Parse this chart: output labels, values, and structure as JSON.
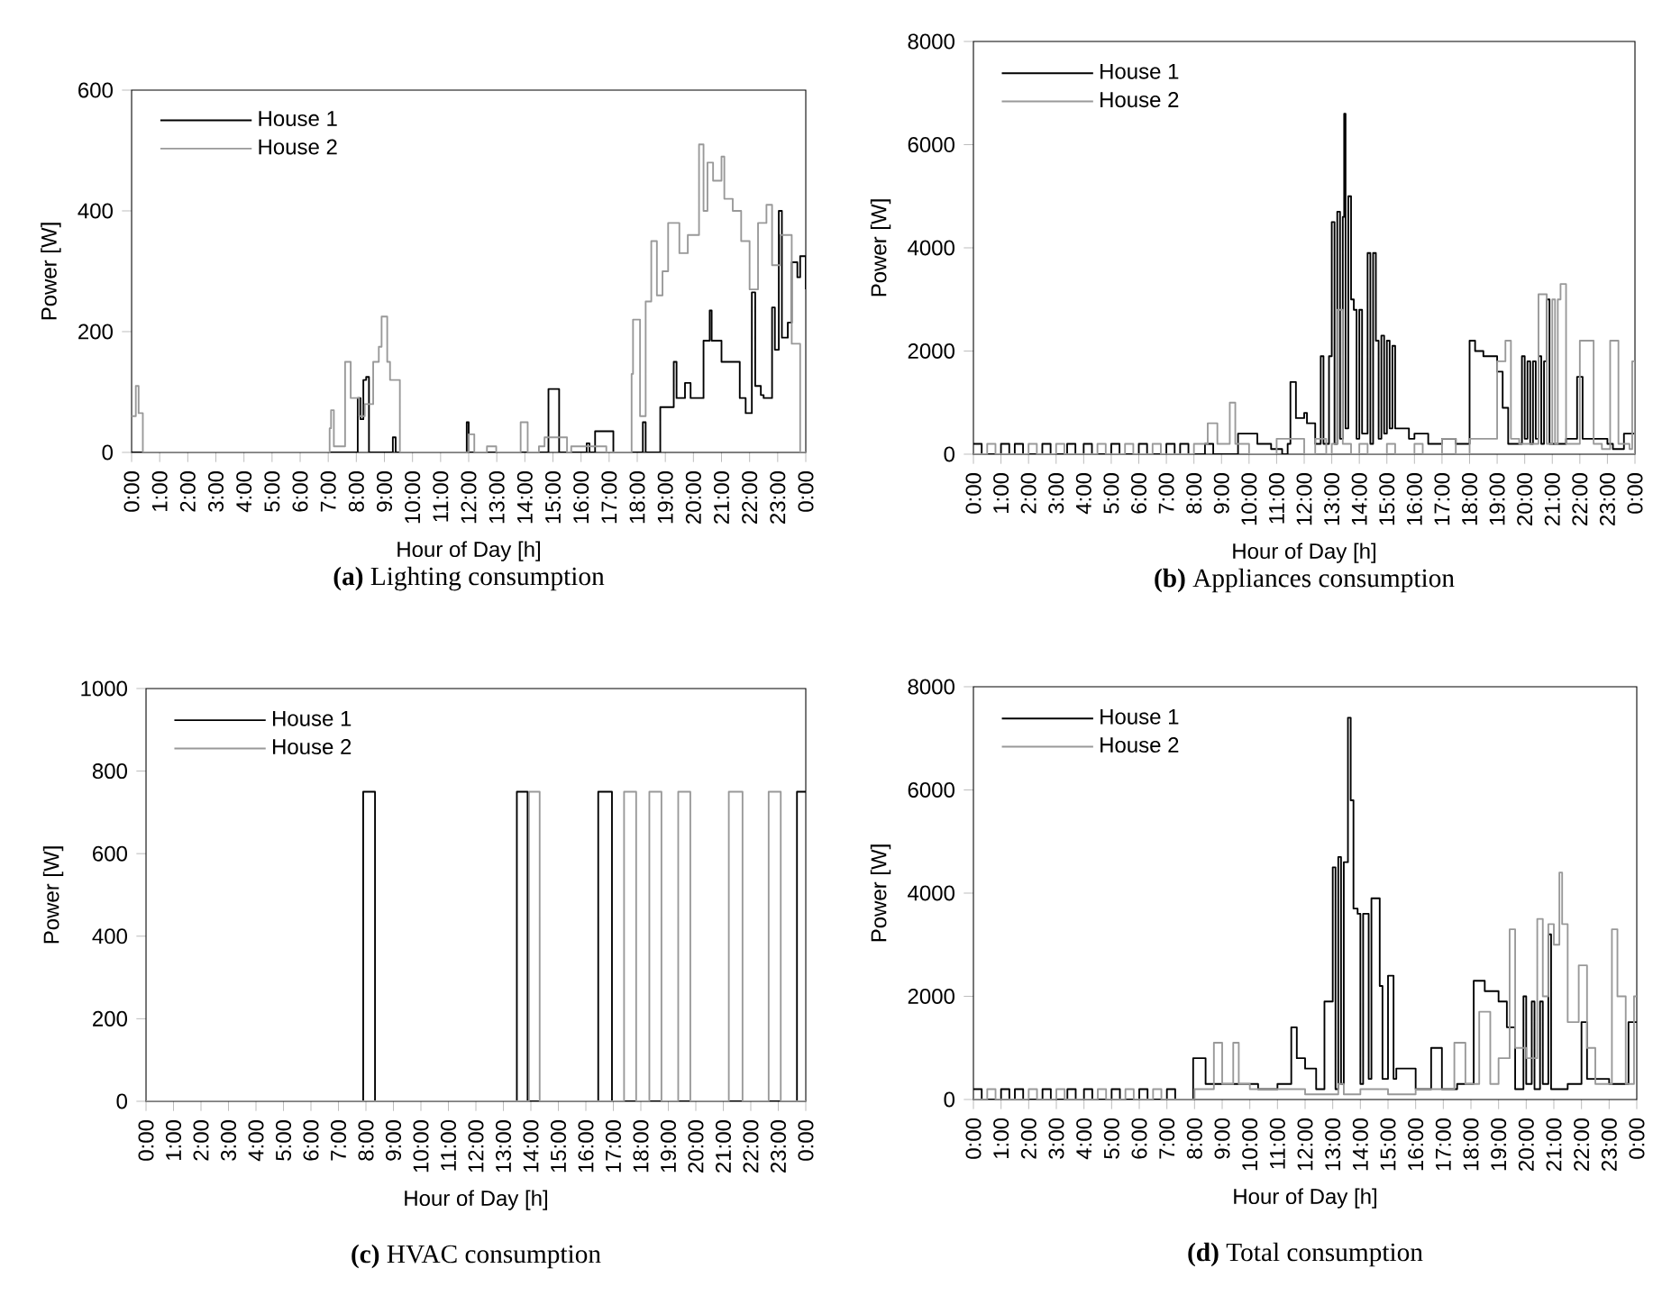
{
  "chart_data": [
    {
      "type": "step",
      "title": "**(a)** Lighting consumption",
      "xlabel": "Hour of Day [h]",
      "ylabel": "Power [W]",
      "xlim": [
        0,
        24
      ],
      "ylim": [
        0,
        600
      ],
      "yticks": [
        0,
        200,
        400,
        600
      ],
      "legend": "top left",
      "xticks": [
        {
          "value": 0,
          "label": "0:00"
        },
        {
          "value": 1,
          "label": "1:00"
        },
        {
          "value": 2,
          "label": "2:00"
        },
        {
          "value": 3,
          "label": "3:00"
        },
        {
          "value": 4,
          "label": "4:00"
        },
        {
          "value": 5,
          "label": "5:00"
        },
        {
          "value": 6,
          "label": "6:00"
        },
        {
          "value": 7,
          "label": "7:00"
        },
        {
          "value": 8,
          "label": "8:00"
        },
        {
          "value": 9,
          "label": "9:00"
        },
        {
          "value": 10,
          "label": "10:00"
        },
        {
          "value": 11,
          "label": "11:00"
        },
        {
          "value": 12,
          "label": "12:00"
        },
        {
          "value": 13,
          "label": "13:00"
        },
        {
          "value": 14,
          "label": "14:00"
        },
        {
          "value": 15,
          "label": "15:00"
        },
        {
          "value": 16,
          "label": "16:00"
        },
        {
          "value": 17,
          "label": "17:00"
        },
        {
          "value": 18,
          "label": "18:00"
        },
        {
          "value": 19,
          "label": "19:00"
        },
        {
          "value": 20,
          "label": "20:00"
        },
        {
          "value": 21,
          "label": "21:00"
        },
        {
          "value": 22,
          "label": "22:00"
        },
        {
          "value": 23,
          "label": "23:00"
        },
        {
          "value": 24,
          "label": "0:00"
        }
      ],
      "series": [
        {
          "name": "House 1",
          "color": "#000000",
          "x": [
            0,
            8.05,
            8.15,
            8.25,
            8.35,
            8.45,
            8.55,
            9.3,
            9.4,
            11.93,
            12.0,
            14.84,
            15.22,
            16.2,
            16.3,
            16.5,
            17.15,
            18.2,
            18.3,
            18.82,
            19.3,
            19.4,
            19.7,
            19.9,
            20.36,
            20.58,
            20.65,
            21.0,
            21.65,
            21.86,
            22.08,
            22.2,
            22.4,
            22.5,
            22.8,
            22.9,
            23.04,
            23.15,
            23.36,
            23.5,
            23.7,
            23.8,
            24
          ],
          "values": [
            0,
            90,
            55,
            120,
            125,
            0,
            0,
            25,
            0,
            50,
            0,
            105,
            0,
            15,
            0,
            35,
            0,
            50,
            0,
            75,
            150,
            90,
            115,
            90,
            185,
            235,
            185,
            150,
            90,
            65,
            265,
            110,
            95,
            90,
            240,
            170,
            400,
            190,
            215,
            315,
            290,
            325,
            270
          ]
        },
        {
          "name": "House 2",
          "color": "#999999",
          "x": [
            0,
            0.08,
            0.15,
            0.25,
            0.4,
            7.05,
            7.1,
            7.2,
            7.6,
            7.8,
            8.1,
            8.3,
            8.6,
            8.8,
            8.9,
            9.1,
            9.2,
            9.55,
            12.0,
            12.2,
            12.65,
            12.98,
            13.85,
            14.1,
            14.5,
            14.7,
            15.5,
            15.65,
            16.9,
            17.8,
            17.85,
            18.1,
            18.3,
            18.5,
            18.7,
            18.9,
            19.1,
            19.5,
            19.8,
            20.2,
            20.36,
            20.5,
            20.7,
            21.0,
            21.1,
            21.4,
            21.7,
            22.0,
            22.3,
            22.6,
            22.8,
            23.1,
            23.5,
            23.8,
            23.9,
            24
          ],
          "values": [
            60,
            60,
            110,
            65,
            0,
            40,
            70,
            10,
            150,
            90,
            60,
            80,
            150,
            175,
            225,
            150,
            120,
            0,
            30,
            0,
            10,
            0,
            50,
            0,
            10,
            25,
            0,
            10,
            0,
            130,
            220,
            60,
            250,
            350,
            260,
            300,
            380,
            330,
            360,
            510,
            400,
            480,
            450,
            490,
            420,
            400,
            350,
            270,
            380,
            410,
            310,
            360,
            180,
            0,
            0,
            0
          ]
        }
      ]
    },
    {
      "type": "step",
      "title": "**(b)** Appliances consumption",
      "xlabel": "Hour of Day [h]",
      "ylabel": "Power [W]",
      "xlim": [
        0,
        24
      ],
      "ylim": [
        0,
        8000
      ],
      "yticks": [
        0,
        2000,
        4000,
        6000,
        8000
      ],
      "legend": "top left",
      "xticks": [
        {
          "value": 0,
          "label": "0:00"
        },
        {
          "value": 1,
          "label": "1:00"
        },
        {
          "value": 2,
          "label": "2:00"
        },
        {
          "value": 3,
          "label": "3:00"
        },
        {
          "value": 4,
          "label": "4:00"
        },
        {
          "value": 5,
          "label": "5:00"
        },
        {
          "value": 6,
          "label": "6:00"
        },
        {
          "value": 7,
          "label": "7:00"
        },
        {
          "value": 8,
          "label": "8:00"
        },
        {
          "value": 9,
          "label": "9:00"
        },
        {
          "value": 10,
          "label": "10:00"
        },
        {
          "value": 11,
          "label": "11:00"
        },
        {
          "value": 12,
          "label": "12:00"
        },
        {
          "value": 13,
          "label": "13:00"
        },
        {
          "value": 14,
          "label": "14:00"
        },
        {
          "value": 15,
          "label": "15:00"
        },
        {
          "value": 16,
          "label": "16:00"
        },
        {
          "value": 17,
          "label": "17:00"
        },
        {
          "value": 18,
          "label": "18:00"
        },
        {
          "value": 19,
          "label": "19:00"
        },
        {
          "value": 20,
          "label": "20:00"
        },
        {
          "value": 21,
          "label": "21:00"
        },
        {
          "value": 22,
          "label": "22:00"
        },
        {
          "value": 23,
          "label": "23:00"
        },
        {
          "value": 24,
          "label": "0:00"
        }
      ],
      "series": [
        {
          "name": "House 1",
          "color": "#000000",
          "x": [
            0,
            0.3,
            1.0,
            1.3,
            1.5,
            1.8,
            2.5,
            2.8,
            3.4,
            3.7,
            4.0,
            4.3,
            5.0,
            5.3,
            6.0,
            6.3,
            7.0,
            7.3,
            7.5,
            7.8,
            8.4,
            8.7,
            9.6,
            10.3,
            10.8,
            11.2,
            11.4,
            11.5,
            11.7,
            12.0,
            12.1,
            12.4,
            12.6,
            12.7,
            12.9,
            13.0,
            13.1,
            13.2,
            13.3,
            13.4,
            13.45,
            13.5,
            13.6,
            13.7,
            13.8,
            13.9,
            14.0,
            14.1,
            14.3,
            14.4,
            14.5,
            14.6,
            14.7,
            14.8,
            14.9,
            15.0,
            15.1,
            15.2,
            15.3,
            15.8,
            16.0,
            16.5,
            17.0,
            17.5,
            18.0,
            18.2,
            18.5,
            19.0,
            19.2,
            19.4,
            19.6,
            19.9,
            20.0,
            20.1,
            20.2,
            20.3,
            20.4,
            20.5,
            20.6,
            20.7,
            20.8,
            20.9,
            21.5,
            21.9,
            22.1,
            22.5,
            23.0,
            23.2,
            23.6,
            24
          ],
          "values": [
            200,
            0,
            200,
            0,
            200,
            0,
            200,
            0,
            200,
            0,
            200,
            0,
            200,
            0,
            200,
            0,
            200,
            0,
            200,
            0,
            200,
            0,
            400,
            200,
            100,
            0,
            200,
            1400,
            700,
            800,
            600,
            200,
            1900,
            200,
            1900,
            4500,
            200,
            4700,
            300,
            4600,
            6600,
            500,
            5000,
            3000,
            2800,
            300,
            2800,
            400,
            3900,
            200,
            3900,
            2200,
            300,
            2300,
            400,
            2200,
            500,
            2100,
            500,
            300,
            400,
            200,
            300,
            200,
            2200,
            2000,
            1900,
            1600,
            900,
            200,
            200,
            1900,
            300,
            1800,
            200,
            1800,
            300,
            1900,
            200,
            1800,
            3000,
            200,
            300,
            1500,
            300,
            300,
            200,
            100,
            400,
            400
          ]
        },
        {
          "name": "House 2",
          "color": "#999999",
          "x": [
            0,
            0.5,
            0.8,
            2.0,
            2.3,
            3.0,
            3.3,
            4.5,
            4.8,
            5.5,
            5.8,
            6.5,
            6.8,
            8.0,
            8.5,
            8.85,
            9.3,
            9.5,
            10.0,
            11.0,
            12.0,
            12.4,
            12.8,
            13.0,
            13.2,
            13.4,
            13.7,
            14.0,
            14.3,
            15.0,
            15.3,
            16.0,
            16.3,
            17.0,
            17.5,
            18.0,
            19.0,
            19.3,
            19.5,
            19.8,
            20.5,
            20.8,
            21.0,
            21.1,
            21.2,
            21.3,
            21.5,
            22.0,
            22.5,
            22.8,
            23.1,
            23.4,
            23.8,
            23.9,
            24
          ],
          "values": [
            0,
            200,
            0,
            200,
            0,
            200,
            0,
            200,
            0,
            200,
            0,
            200,
            0,
            200,
            600,
            200,
            1000,
            200,
            0,
            300,
            0,
            300,
            0,
            200,
            2800,
            200,
            0,
            200,
            0,
            200,
            0,
            200,
            0,
            300,
            0,
            300,
            1800,
            2200,
            300,
            200,
            3100,
            200,
            3000,
            200,
            3000,
            3300,
            200,
            2200,
            200,
            100,
            2200,
            200,
            100,
            1800,
            0
          ]
        }
      ]
    },
    {
      "type": "step",
      "title": "**(c)** HVAC consumption",
      "xlabel": "Hour of Day [h]",
      "ylabel": "Power [W]",
      "xlim": [
        0,
        24
      ],
      "ylim": [
        0,
        1000
      ],
      "yticks": [
        0,
        200,
        400,
        600,
        800,
        1000
      ],
      "legend": "top left",
      "xticks": [
        {
          "value": 0,
          "label": "0:00"
        },
        {
          "value": 1,
          "label": "1:00"
        },
        {
          "value": 2,
          "label": "2:00"
        },
        {
          "value": 3,
          "label": "3:00"
        },
        {
          "value": 4,
          "label": "4:00"
        },
        {
          "value": 5,
          "label": "5:00"
        },
        {
          "value": 6,
          "label": "6:00"
        },
        {
          "value": 7,
          "label": "7:00"
        },
        {
          "value": 8,
          "label": "8:00"
        },
        {
          "value": 9,
          "label": "9:00"
        },
        {
          "value": 10,
          "label": "10:00"
        },
        {
          "value": 11,
          "label": "11:00"
        },
        {
          "value": 12,
          "label": "12:00"
        },
        {
          "value": 13,
          "label": "13:00"
        },
        {
          "value": 14,
          "label": "14:00"
        },
        {
          "value": 15,
          "label": "15:00"
        },
        {
          "value": 16,
          "label": "16:00"
        },
        {
          "value": 17,
          "label": "17:00"
        },
        {
          "value": 18,
          "label": "18:00"
        },
        {
          "value": 19,
          "label": "19:00"
        },
        {
          "value": 20,
          "label": "20:00"
        },
        {
          "value": 21,
          "label": "21:00"
        },
        {
          "value": 22,
          "label": "22:00"
        },
        {
          "value": 23,
          "label": "23:00"
        },
        {
          "value": 24,
          "label": "0:00"
        }
      ],
      "series": [
        {
          "name": "House 1",
          "color": "#000000",
          "x": [
            0,
            7.9,
            8.33,
            13.49,
            13.88,
            16.45,
            16.95,
            23.68,
            24
          ],
          "values": [
            0,
            750,
            0,
            750,
            0,
            750,
            0,
            750,
            750
          ]
        },
        {
          "name": "House 2",
          "color": "#999999",
          "x": [
            0,
            13.93,
            14.32,
            17.39,
            17.83,
            18.31,
            18.75,
            19.36,
            19.8,
            21.2,
            21.7,
            22.65,
            23.09,
            24
          ],
          "values": [
            0,
            750,
            0,
            750,
            0,
            750,
            0,
            750,
            0,
            750,
            0,
            750,
            0,
            0
          ]
        }
      ]
    },
    {
      "type": "step",
      "title": "**(d)** Total consumption",
      "xlabel": "Hour of Day [h]",
      "ylabel": "Power [W]",
      "xlim": [
        0,
        24
      ],
      "ylim": [
        0,
        8000
      ],
      "yticks": [
        0,
        2000,
        4000,
        6000,
        8000
      ],
      "legend": "top left",
      "xticks": [
        {
          "value": 0,
          "label": "0:00"
        },
        {
          "value": 1,
          "label": "1:00"
        },
        {
          "value": 2,
          "label": "2:00"
        },
        {
          "value": 3,
          "label": "3:00"
        },
        {
          "value": 4,
          "label": "4:00"
        },
        {
          "value": 5,
          "label": "5:00"
        },
        {
          "value": 6,
          "label": "6:00"
        },
        {
          "value": 7,
          "label": "7:00"
        },
        {
          "value": 8,
          "label": "8:00"
        },
        {
          "value": 9,
          "label": "9:00"
        },
        {
          "value": 10,
          "label": "10:00"
        },
        {
          "value": 11,
          "label": "11:00"
        },
        {
          "value": 12,
          "label": "12:00"
        },
        {
          "value": 13,
          "label": "13:00"
        },
        {
          "value": 14,
          "label": "14:00"
        },
        {
          "value": 15,
          "label": "15:00"
        },
        {
          "value": 16,
          "label": "16:00"
        },
        {
          "value": 17,
          "label": "17:00"
        },
        {
          "value": 18,
          "label": "18:00"
        },
        {
          "value": 19,
          "label": "19:00"
        },
        {
          "value": 20,
          "label": "20:00"
        },
        {
          "value": 21,
          "label": "21:00"
        },
        {
          "value": 22,
          "label": "22:00"
        },
        {
          "value": 23,
          "label": "23:00"
        },
        {
          "value": 24,
          "label": "0:00"
        }
      ],
      "series": [
        {
          "name": "House 1",
          "color": "#000000",
          "x": [
            0,
            0.3,
            1.0,
            1.3,
            1.5,
            1.8,
            2.5,
            2.8,
            3.4,
            3.7,
            4.0,
            4.3,
            5.0,
            5.3,
            6.0,
            6.3,
            7.0,
            7.3,
            7.95,
            8.4,
            9.5,
            10.3,
            11.0,
            11.5,
            11.7,
            12.0,
            12.4,
            12.7,
            13.0,
            13.1,
            13.2,
            13.3,
            13.4,
            13.55,
            13.65,
            13.75,
            13.9,
            14.0,
            14.1,
            14.3,
            14.4,
            14.7,
            14.8,
            15.0,
            15.2,
            15.3,
            16.0,
            16.56,
            16.95,
            17.5,
            18.1,
            18.5,
            19.0,
            19.3,
            19.6,
            19.9,
            20.0,
            20.2,
            20.3,
            20.5,
            20.6,
            20.8,
            20.9,
            21.5,
            22.0,
            22.2,
            23.0,
            23.7,
            24
          ],
          "values": [
            200,
            0,
            200,
            0,
            200,
            0,
            200,
            0,
            200,
            0,
            200,
            0,
            200,
            0,
            200,
            0,
            200,
            0,
            800,
            300,
            300,
            200,
            300,
            1400,
            800,
            600,
            200,
            1900,
            4500,
            200,
            4700,
            300,
            4600,
            7400,
            5800,
            3700,
            3600,
            300,
            3600,
            400,
            3900,
            2200,
            400,
            2400,
            400,
            600,
            200,
            1000,
            200,
            300,
            2300,
            2100,
            1900,
            1400,
            200,
            2000,
            300,
            1900,
            200,
            1900,
            300,
            3200,
            200,
            300,
            1500,
            400,
            300,
            1500,
            1500
          ]
        },
        {
          "name": "House 2",
          "color": "#999999",
          "x": [
            0,
            0.5,
            0.8,
            2.0,
            2.3,
            3.0,
            3.3,
            4.5,
            4.8,
            5.5,
            5.8,
            6.5,
            6.8,
            8.0,
            8.7,
            9.0,
            9.4,
            9.6,
            10.0,
            12.0,
            13.2,
            13.4,
            14.0,
            15.0,
            16.0,
            17.4,
            17.8,
            18.3,
            18.7,
            19.0,
            19.4,
            19.6,
            20.0,
            20.4,
            20.6,
            20.8,
            21.0,
            21.2,
            21.3,
            21.5,
            21.9,
            22.2,
            22.5,
            23.1,
            23.3,
            23.6,
            23.9,
            24
          ],
          "values": [
            0,
            200,
            0,
            200,
            0,
            200,
            0,
            200,
            0,
            200,
            0,
            200,
            0,
            200,
            1100,
            300,
            1100,
            300,
            200,
            100,
            300,
            100,
            200,
            100,
            200,
            1100,
            300,
            1700,
            300,
            800,
            3300,
            1000,
            800,
            3500,
            2000,
            3400,
            3000,
            4400,
            3400,
            1500,
            2600,
            1000,
            300,
            3300,
            2000,
            300,
            2000,
            2000
          ]
        }
      ]
    }
  ]
}
